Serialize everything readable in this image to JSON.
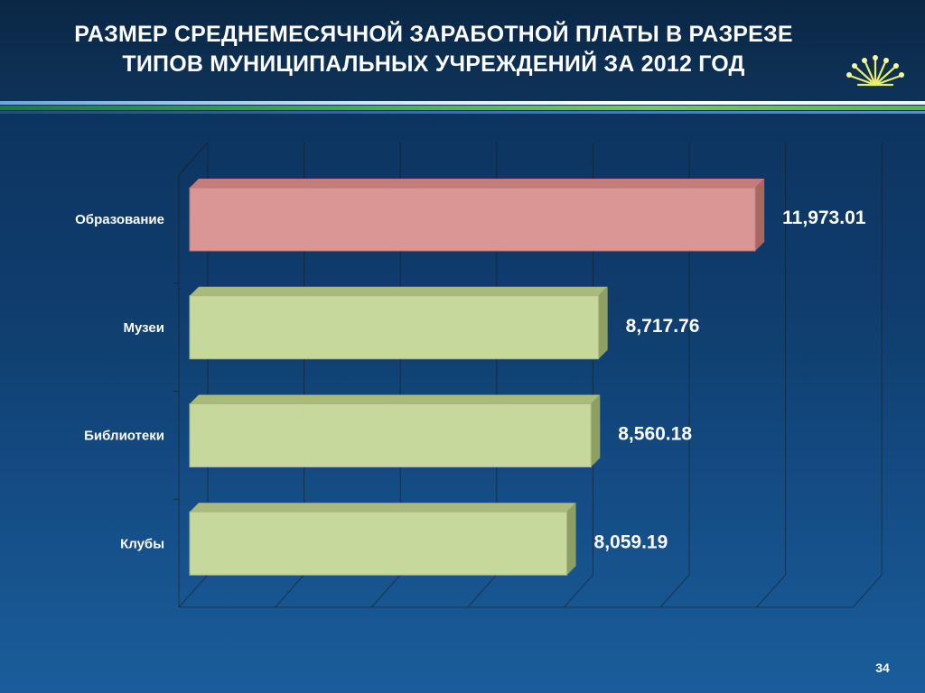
{
  "header": {
    "title_line1": "РАЗМЕР СРЕДНЕМЕСЯЧНОЙ ЗАРАБОТНОЙ ПЛАТЫ В РАЗРЕЗЕ",
    "title_line2": "ТИПОВ МУНИЦИПАЛЬНЫХ УЧРЕЖДЕНИЙ ЗА 2012 ГОД",
    "logo_icon": "kurai-flower-icon"
  },
  "slide": {
    "page_number": "34"
  },
  "colors": {
    "background": "#0f3d6e",
    "highlight_bar": "#d99694",
    "normal_bar": "#c7d89c",
    "text": "#ffffff"
  },
  "chart_data": {
    "type": "bar",
    "orientation": "horizontal",
    "style": "3d",
    "title": "РАЗМЕР СРЕДНЕМЕСЯЧНОЙ ЗАРАБОТНОЙ ПЛАТЫ В РАЗРЕЗЕ ТИПОВ МУНИЦИПАЛЬНЫХ УЧРЕЖДЕНИЙ ЗА 2012 ГОД",
    "categories": [
      "Образование",
      "Музеи",
      "Библиотеки",
      "Клубы"
    ],
    "values": [
      11973.01,
      8717.76,
      8560.18,
      8059.19
    ],
    "value_labels": [
      "11,973.01",
      "8,717.76",
      "8,560.18",
      "8,059.19"
    ],
    "bar_colors": [
      "#d99694",
      "#c7d89c",
      "#c7d89c",
      "#c7d89c"
    ],
    "xlim": [
      0,
      14000
    ],
    "grid": true,
    "legend": "none"
  }
}
